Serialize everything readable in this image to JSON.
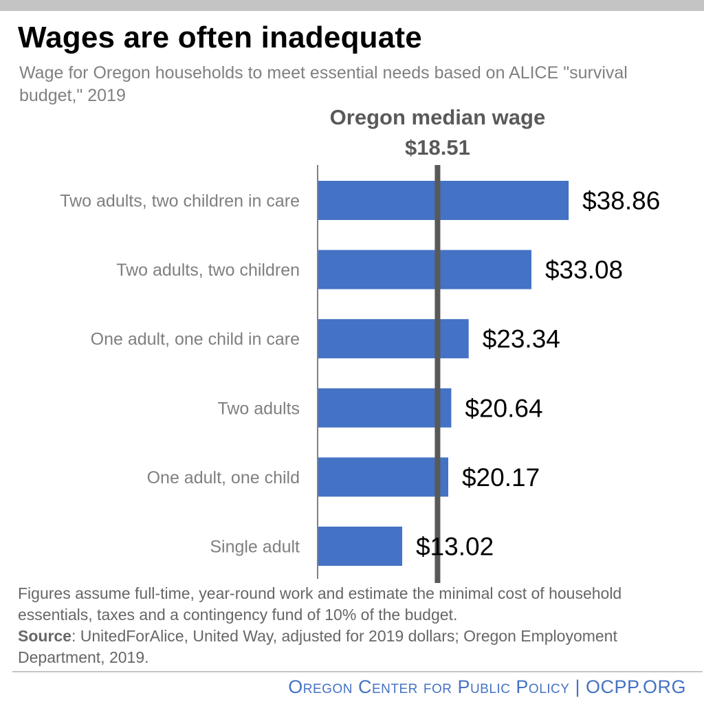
{
  "header": {
    "title": "Wages are often inadequate",
    "subtitle": "Wage for Oregon households to meet essential needs based on ALICE \"survival budget,\" 2019"
  },
  "chart_data": {
    "type": "bar",
    "orientation": "horizontal",
    "categories": [
      "Two adults, two children in care",
      "Two adults, two children",
      "One adult, one child in care",
      "Two adults",
      "One adult, one child",
      "Single adult"
    ],
    "values": [
      38.86,
      33.08,
      23.34,
      20.64,
      20.17,
      13.02
    ],
    "value_labels": [
      "$38.86",
      "$33.08",
      "$23.34",
      "$20.64",
      "$20.17",
      "$13.02"
    ],
    "xlim": [
      0,
      40
    ],
    "reference_line": {
      "value": 18.51,
      "label": "Oregon median wage",
      "value_label": "$18.51"
    },
    "grid": false,
    "legend": "none"
  },
  "footnote": {
    "assumptions": "Figures assume full-time, year-round work and estimate the minimal cost of household essentials, taxes and a contingency fund of 10% of the budget.",
    "source_label": "Source",
    "source_text": ": UnitedForAlice, United Way, adjusted for 2019 dollars; Oregon Employoment Department, 2019."
  },
  "footer": {
    "organization": "Oregon Center for Public Policy | OCPP.ORG"
  },
  "colors": {
    "bar": "#4472c4",
    "reference_line": "#595959",
    "axis": "#808080",
    "category_text": "#7f7f7f",
    "value_text": "#000000",
    "footer_text": "#4472c4"
  }
}
